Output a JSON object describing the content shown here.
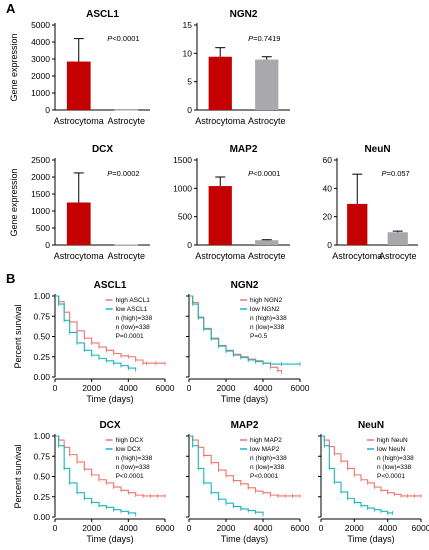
{
  "figure": {
    "panel_a_label": "A",
    "panel_b_label": "B"
  },
  "colors": {
    "astrocytoma_bar": "#c40000",
    "astrocyte_bar": "#a9a9ad",
    "high_curve": "#f0746b",
    "low_curve": "#1ab5bd",
    "axis": "#000000"
  },
  "chart_data": [
    {
      "type": "bar",
      "title": "ASCL1",
      "ylabel": "Gene expression",
      "xlabel": "",
      "categories": [
        "Astrocytoma",
        "Astrocyte"
      ],
      "values": [
        2850,
        15
      ],
      "errors": [
        1350,
        0
      ],
      "ylim": [
        0,
        5000
      ],
      "yticks": [
        "0",
        "1000",
        "2000",
        "3000",
        "4000",
        "5000"
      ],
      "annotation_prefix": "P",
      "annotation_value": "<0.0001"
    },
    {
      "type": "bar",
      "title": "NGN2",
      "ylabel": "",
      "xlabel": "",
      "categories": [
        "Astrocytoma",
        "Astrocyte"
      ],
      "values": [
        9.4,
        8.9
      ],
      "errors": [
        1.6,
        0.5
      ],
      "ylim": [
        0,
        15
      ],
      "yticks": [
        "0",
        "5",
        "10",
        "15"
      ],
      "annotation_prefix": "P",
      "annotation_value": "=0.7419"
    },
    {
      "type": "bar",
      "title": "DCX",
      "ylabel": "Gene expression",
      "xlabel": "",
      "categories": [
        "Astrocytoma",
        "Astrocyte"
      ],
      "values": [
        1250,
        15
      ],
      "errors": [
        870,
        0
      ],
      "ylim": [
        0,
        2500
      ],
      "yticks": [
        "0",
        "500",
        "1000",
        "1500",
        "2000",
        "2500"
      ],
      "annotation_prefix": "P",
      "annotation_value": "=0.0002"
    },
    {
      "type": "bar",
      "title": "MAP2",
      "ylabel": "",
      "xlabel": "",
      "categories": [
        "Astrocytoma",
        "Astrocyte"
      ],
      "values": [
        1040,
        85
      ],
      "errors": [
        160,
        8
      ],
      "ylim": [
        0,
        1500
      ],
      "yticks": [
        "0",
        "500",
        "1000",
        "1500"
      ],
      "annotation_prefix": "P",
      "annotation_value": "<0.0001"
    },
    {
      "type": "bar",
      "title": "NeuN",
      "ylabel": "",
      "xlabel": "",
      "categories": [
        "Astrocytoma",
        "Astrocyte"
      ],
      "values": [
        29,
        9
      ],
      "errors": [
        21,
        0.8
      ],
      "ylim": [
        0,
        60
      ],
      "yticks": [
        "0",
        "20",
        "40",
        "60"
      ],
      "annotation_prefix": "P",
      "annotation_value": "=0.057"
    },
    {
      "type": "line",
      "title": "ASCL1",
      "ylabel": "Percent survival",
      "xlabel": "Time (days)",
      "xlim": [
        0,
        6000
      ],
      "ylim": [
        0,
        1.0
      ],
      "xticks": [
        "0",
        "2000",
        "4000",
        "6000"
      ],
      "yticks": [
        "0.00",
        "0.25",
        "0.50",
        "0.75",
        "1.00"
      ],
      "series": [
        {
          "name": "high ASCL1",
          "x": [
            0,
            200,
            500,
            800,
            1200,
            1600,
            2000,
            2400,
            2800,
            3200,
            3600,
            4000,
            4400,
            4800,
            5000,
            5500,
            6000
          ],
          "y": [
            1.0,
            0.93,
            0.8,
            0.68,
            0.57,
            0.48,
            0.42,
            0.37,
            0.33,
            0.29,
            0.26,
            0.25,
            0.21,
            0.17,
            0.17,
            0.17,
            0.17
          ]
        },
        {
          "name": "low ASCL1",
          "x": [
            0,
            200,
            500,
            800,
            1200,
            1600,
            2000,
            2400,
            2800,
            3200,
            3600,
            4000,
            4400
          ],
          "y": [
            1.0,
            0.9,
            0.7,
            0.55,
            0.42,
            0.33,
            0.27,
            0.23,
            0.2,
            0.17,
            0.14,
            0.11,
            0.09
          ]
        }
      ],
      "legend": [
        "high ASCL1",
        "low ASCL1",
        "n (high)=338",
        "n (low)=338",
        "P=0.0001"
      ]
    },
    {
      "type": "line",
      "title": "NGN2",
      "ylabel": "",
      "xlabel": "Time (days)",
      "xlim": [
        0,
        6000
      ],
      "ylim": [
        0,
        1.0
      ],
      "xticks": [
        "0",
        "2000",
        "4000",
        "6000"
      ],
      "yticks": [],
      "series": [
        {
          "name": "high NGN2",
          "x": [
            0,
            200,
            500,
            800,
            1200,
            1600,
            2000,
            2400,
            2800,
            3200,
            3600,
            4000,
            4400,
            4800,
            5000
          ],
          "y": [
            1.0,
            0.92,
            0.74,
            0.6,
            0.48,
            0.39,
            0.33,
            0.28,
            0.25,
            0.22,
            0.2,
            0.17,
            0.12,
            0.08,
            0.06
          ]
        },
        {
          "name": "low NGN2",
          "x": [
            0,
            200,
            500,
            800,
            1200,
            1600,
            2000,
            2400,
            2800,
            3200,
            3600,
            4000,
            4400,
            5000,
            6000
          ],
          "y": [
            1.0,
            0.9,
            0.73,
            0.59,
            0.47,
            0.38,
            0.32,
            0.27,
            0.24,
            0.21,
            0.19,
            0.17,
            0.16,
            0.16,
            0.16
          ]
        }
      ],
      "legend": [
        "high NGN2",
        "low NGN2",
        "n (high)=338",
        "n (low)=338",
        "P=0.5"
      ]
    },
    {
      "type": "line",
      "title": "DCX",
      "ylabel": "Percent survival",
      "xlabel": "Time (days)",
      "xlim": [
        0,
        6000
      ],
      "ylim": [
        0,
        1.0
      ],
      "xticks": [
        "0",
        "2000",
        "4000",
        "6000"
      ],
      "yticks": [
        "0.00",
        "0.25",
        "0.50",
        "0.75",
        "1.00"
      ],
      "series": [
        {
          "name": "high DCX",
          "x": [
            0,
            200,
            500,
            800,
            1200,
            1600,
            2000,
            2400,
            2800,
            3200,
            3600,
            4000,
            4400,
            4800,
            5200,
            5600,
            6000
          ],
          "y": [
            1.0,
            0.95,
            0.86,
            0.77,
            0.68,
            0.59,
            0.52,
            0.46,
            0.42,
            0.37,
            0.33,
            0.3,
            0.27,
            0.26,
            0.26,
            0.26,
            0.26
          ]
        },
        {
          "name": "low DCX",
          "x": [
            0,
            200,
            500,
            800,
            1200,
            1600,
            2000,
            2400,
            2800,
            3200,
            3600,
            4000,
            4400
          ],
          "y": [
            1.0,
            0.88,
            0.6,
            0.42,
            0.3,
            0.23,
            0.18,
            0.14,
            0.12,
            0.09,
            0.07,
            0.05,
            0.03
          ]
        }
      ],
      "legend": [
        "high DCX",
        "low DCX",
        "n (high)=338",
        "n (low)=338",
        "P<0.0001"
      ]
    },
    {
      "type": "line",
      "title": "MAP2",
      "ylabel": "",
      "xlabel": "Time (days)",
      "xlim": [
        0,
        6000
      ],
      "ylim": [
        0,
        1.0
      ],
      "xticks": [
        "0",
        "2000",
        "4000",
        "6000"
      ],
      "yticks": [],
      "series": [
        {
          "name": "high MAP2",
          "x": [
            0,
            200,
            500,
            800,
            1200,
            1600,
            2000,
            2400,
            2800,
            3200,
            3600,
            4000,
            4400,
            4800,
            5200,
            5600,
            6000
          ],
          "y": [
            1.0,
            0.95,
            0.86,
            0.76,
            0.67,
            0.58,
            0.51,
            0.45,
            0.41,
            0.36,
            0.32,
            0.3,
            0.27,
            0.26,
            0.26,
            0.26,
            0.26
          ]
        },
        {
          "name": "low MAP2",
          "x": [
            0,
            200,
            500,
            800,
            1200,
            1600,
            2000,
            2400,
            2800,
            3200,
            3600,
            4000
          ],
          "y": [
            1.0,
            0.88,
            0.6,
            0.42,
            0.3,
            0.22,
            0.17,
            0.13,
            0.1,
            0.08,
            0.06,
            0.03
          ]
        }
      ],
      "legend": [
        "high MAP2",
        "low MAP2",
        "n (high)=338",
        "n (low)=338",
        "P<0.0001"
      ]
    },
    {
      "type": "line",
      "title": "NeuN",
      "ylabel": "",
      "xlabel": "Time (days)",
      "xlim": [
        0,
        6000
      ],
      "ylim": [
        0,
        1.0
      ],
      "xticks": [
        "0",
        "2000",
        "4000",
        "6000"
      ],
      "yticks": [],
      "series": [
        {
          "name": "high NeuN",
          "x": [
            0,
            200,
            500,
            800,
            1200,
            1600,
            2000,
            2400,
            2800,
            3200,
            3600,
            4000,
            4400,
            4800,
            5200,
            5600,
            6000
          ],
          "y": [
            1.0,
            0.95,
            0.87,
            0.78,
            0.69,
            0.6,
            0.52,
            0.46,
            0.42,
            0.37,
            0.33,
            0.3,
            0.28,
            0.26,
            0.26,
            0.26,
            0.26
          ]
        },
        {
          "name": "low NeuN",
          "x": [
            0,
            200,
            500,
            800,
            1200,
            1600,
            2000,
            2400,
            2800,
            3200,
            3600,
            4000,
            4300
          ],
          "y": [
            1.0,
            0.88,
            0.6,
            0.43,
            0.31,
            0.23,
            0.18,
            0.14,
            0.11,
            0.09,
            0.07,
            0.05,
            0.05
          ]
        }
      ],
      "legend": [
        "high NeuN",
        "low NeuN",
        "n (high)=338",
        "n (low)=338",
        "P<0.0001"
      ]
    }
  ]
}
